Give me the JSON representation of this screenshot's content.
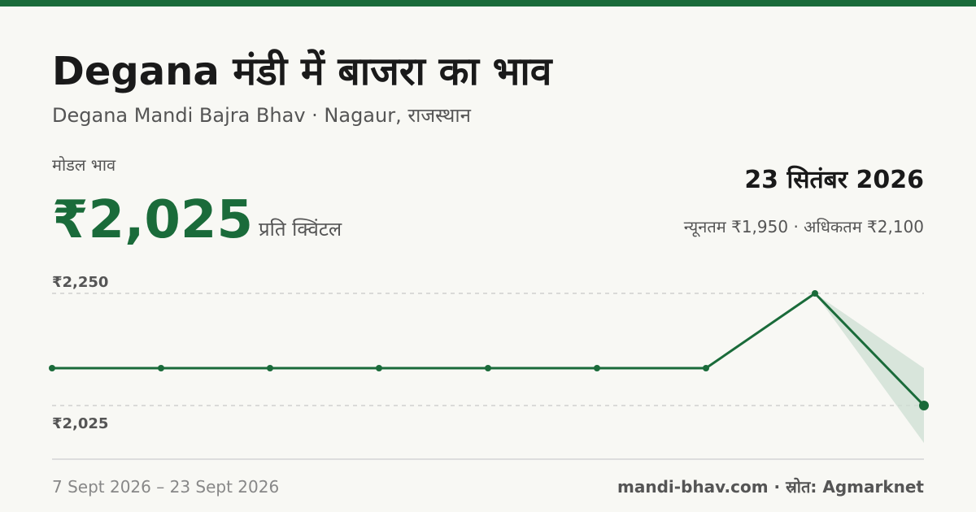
{
  "header": {
    "title": "Degana मंडी में बाजरा का भाव",
    "subtitle": "Degana Mandi Bajra Bhav · Nagaur, राजस्थान"
  },
  "summary": {
    "label": "मोडल भाव",
    "value": 2025,
    "value_label": "₹2,025",
    "unit": "प्रति क्विंटल",
    "date": "23 सितंबर 2026",
    "min": {
      "value": 1950,
      "label": "न्यूनतम ₹1,950"
    },
    "separator": "·",
    "max": {
      "value": 2100,
      "label": "अधिकतम ₹2,100"
    }
  },
  "chart_data": {
    "type": "line",
    "categories": [
      null,
      null,
      null,
      null,
      null,
      null,
      null,
      null,
      null
    ],
    "series": [
      {
        "color": "#1a6b3a",
        "values": [
          2100,
          2100,
          2100,
          2100,
          2100,
          2100,
          2100,
          2250,
          2025
        ]
      }
    ],
    "ylim": [
      1950,
      2250
    ],
    "yticks": [
      {
        "value": 2250,
        "label": "₹2,250"
      },
      {
        "value": 2025,
        "label": "₹2,025"
      }
    ],
    "grid": true,
    "range_color": "#cfe0d5"
  },
  "footer": {
    "date_range": "7 Sept 2026 – 23 Sept 2026",
    "source": "mandi-bhav.com · स्रोत: Agmarknet"
  }
}
